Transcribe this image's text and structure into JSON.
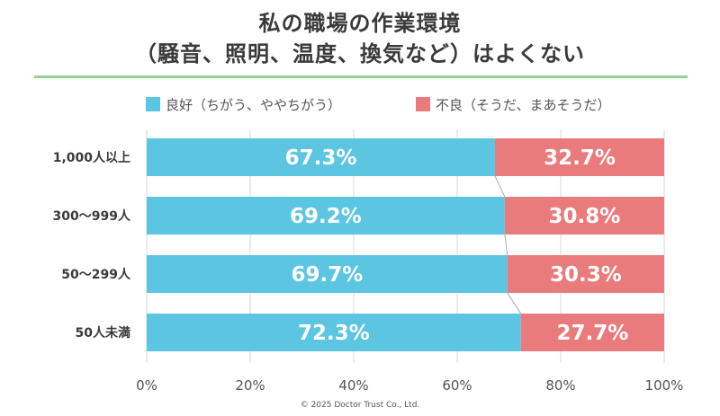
{
  "title_line1": "私の職場の作業環境",
  "title_line2": "（騒音、照明、温度、換気など）はよくない",
  "legend": {
    "good": "良好（ちがう、ややちがう）",
    "bad": "不良（そうだ、まあそうだ）"
  },
  "colors": {
    "good": "#5bc5e2",
    "bad": "#ea7b7d",
    "rule": "#8fd68f"
  },
  "copyright": "© 2025 Doctor Trust Co., Ltd.",
  "chart_data": {
    "type": "bar",
    "orientation": "horizontal",
    "stacked": true,
    "categories": [
      "1,000人以上",
      "300～999人",
      "50～299人",
      "50人未満"
    ],
    "series": [
      {
        "name": "良好（ちがう、ややちがう）",
        "values": [
          67.3,
          69.2,
          69.7,
          72.3
        ],
        "labels": [
          "67.3%",
          "69.2%",
          "69.7%",
          "72.3%"
        ]
      },
      {
        "name": "不良（そうだ、まあそうだ）",
        "values": [
          32.7,
          30.8,
          30.3,
          27.7
        ],
        "labels": [
          "32.7%",
          "30.8%",
          "30.3%",
          "27.7%"
        ]
      }
    ],
    "xticks": [
      "0%",
      "20%",
      "40%",
      "60%",
      "80%",
      "100%"
    ],
    "xlim": [
      0,
      100
    ],
    "grid": true,
    "legend_position": "top"
  }
}
